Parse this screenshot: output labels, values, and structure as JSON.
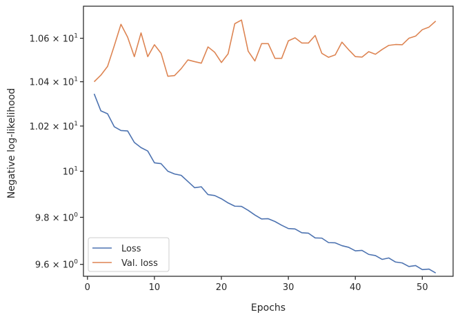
{
  "chart_data": {
    "type": "line",
    "xlabel": "Epochs",
    "ylabel": "Negative log-likelihood",
    "xlim": [
      -0.6,
      54.6
    ],
    "ylim": [
      9.55,
      10.75
    ],
    "y_scale": "log",
    "grid": false,
    "legend_position": "lower-left",
    "x_ticks": [
      {
        "value": 0,
        "label": "0"
      },
      {
        "value": 10,
        "label": "10"
      },
      {
        "value": 20,
        "label": "20"
      },
      {
        "value": 30,
        "label": "30"
      },
      {
        "value": 40,
        "label": "40"
      },
      {
        "value": 50,
        "label": "50"
      }
    ],
    "y_ticks": [
      {
        "value": 9.6,
        "base": "9.6 × 10",
        "exp": "0",
        "plain": ""
      },
      {
        "value": 9.8,
        "base": "9.8 × 10",
        "exp": "0",
        "plain": ""
      },
      {
        "value": 10.0,
        "base": "10",
        "exp": "1",
        "plain": ""
      },
      {
        "value": 10.2,
        "base": "1.02 × 10",
        "exp": "1",
        "plain": ""
      },
      {
        "value": 10.4,
        "base": "1.04 × 10",
        "exp": "1",
        "plain": ""
      },
      {
        "value": 10.6,
        "base": "1.06 × 10",
        "exp": "1",
        "plain": ""
      }
    ],
    "x": [
      1,
      2,
      3,
      4,
      5,
      6,
      7,
      8,
      9,
      10,
      11,
      12,
      13,
      14,
      15,
      16,
      17,
      18,
      19,
      20,
      21,
      22,
      23,
      24,
      25,
      26,
      27,
      28,
      29,
      30,
      31,
      32,
      33,
      34,
      35,
      36,
      37,
      38,
      39,
      40,
      41,
      42,
      43,
      44,
      45,
      46,
      47,
      48,
      49,
      50,
      51,
      52
    ],
    "series": [
      {
        "name": "Loss",
        "color": "#4c72b0",
        "values": [
          10.345,
          10.268,
          10.255,
          10.197,
          10.18,
          10.178,
          10.127,
          10.104,
          10.089,
          10.037,
          10.033,
          10.0,
          9.988,
          9.982,
          9.955,
          9.928,
          9.932,
          9.898,
          9.894,
          9.88,
          9.862,
          9.848,
          9.847,
          9.83,
          9.81,
          9.793,
          9.794,
          9.782,
          9.766,
          9.752,
          9.75,
          9.734,
          9.732,
          9.712,
          9.711,
          9.692,
          9.691,
          9.679,
          9.672,
          9.657,
          9.659,
          9.642,
          9.637,
          9.621,
          9.627,
          9.61,
          9.606,
          9.591,
          9.595,
          9.578,
          9.58,
          9.564
        ]
      },
      {
        "name": "Val. loss",
        "color": "#dd8452",
        "values": [
          10.4,
          10.43,
          10.47,
          10.565,
          10.665,
          10.605,
          10.515,
          10.625,
          10.515,
          10.57,
          10.53,
          10.425,
          10.428,
          10.46,
          10.5,
          10.492,
          10.485,
          10.56,
          10.535,
          10.488,
          10.528,
          10.668,
          10.685,
          10.54,
          10.495,
          10.575,
          10.575,
          10.507,
          10.507,
          10.588,
          10.602,
          10.578,
          10.578,
          10.613,
          10.53,
          10.512,
          10.523,
          10.582,
          10.547,
          10.515,
          10.513,
          10.538,
          10.526,
          10.548,
          10.567,
          10.571,
          10.57,
          10.6,
          10.61,
          10.64,
          10.652,
          10.68
        ]
      }
    ]
  }
}
